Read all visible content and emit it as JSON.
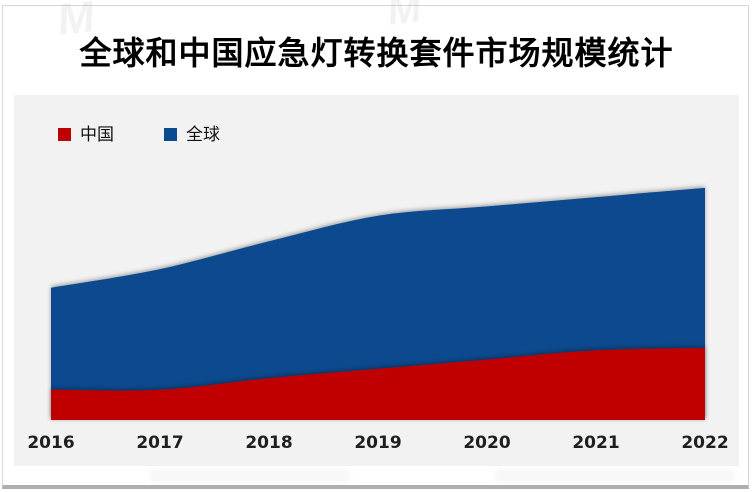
{
  "title": "全球和中国应急灯转换套件市场规模统计",
  "legend": [
    {
      "label": "中国",
      "color": "#c00000",
      "icon": "legend-square-swatch"
    },
    {
      "label": "全球",
      "color": "#0a4a8e",
      "icon": "legend-square-swatch"
    }
  ],
  "watermark": {
    "icon": "brand-logo-watermark",
    "glyph": "M"
  },
  "chart_data": {
    "type": "area",
    "title": "全球和中国应急灯转换套件市场规模统计",
    "categories": [
      "2016",
      "2017",
      "2018",
      "2019",
      "2020",
      "2021",
      "2022"
    ],
    "series": [
      {
        "name": "全球",
        "color": "#0a4a8e",
        "values": [
          57,
          65,
          77,
          88,
          92,
          96,
          100
        ]
      },
      {
        "name": "中国",
        "color": "#c00000",
        "values": [
          13,
          13,
          18,
          22,
          26,
          30,
          31
        ]
      }
    ],
    "xlabel": "",
    "ylabel": "",
    "ylim": [
      0,
      140
    ],
    "units": "relative index (no y-axis labels shown; 2022 全球 = 100)",
    "grid": false,
    "y_axis_visible": false,
    "legend_position": "top-left",
    "background": "#f2f2f2",
    "smooth": true
  }
}
